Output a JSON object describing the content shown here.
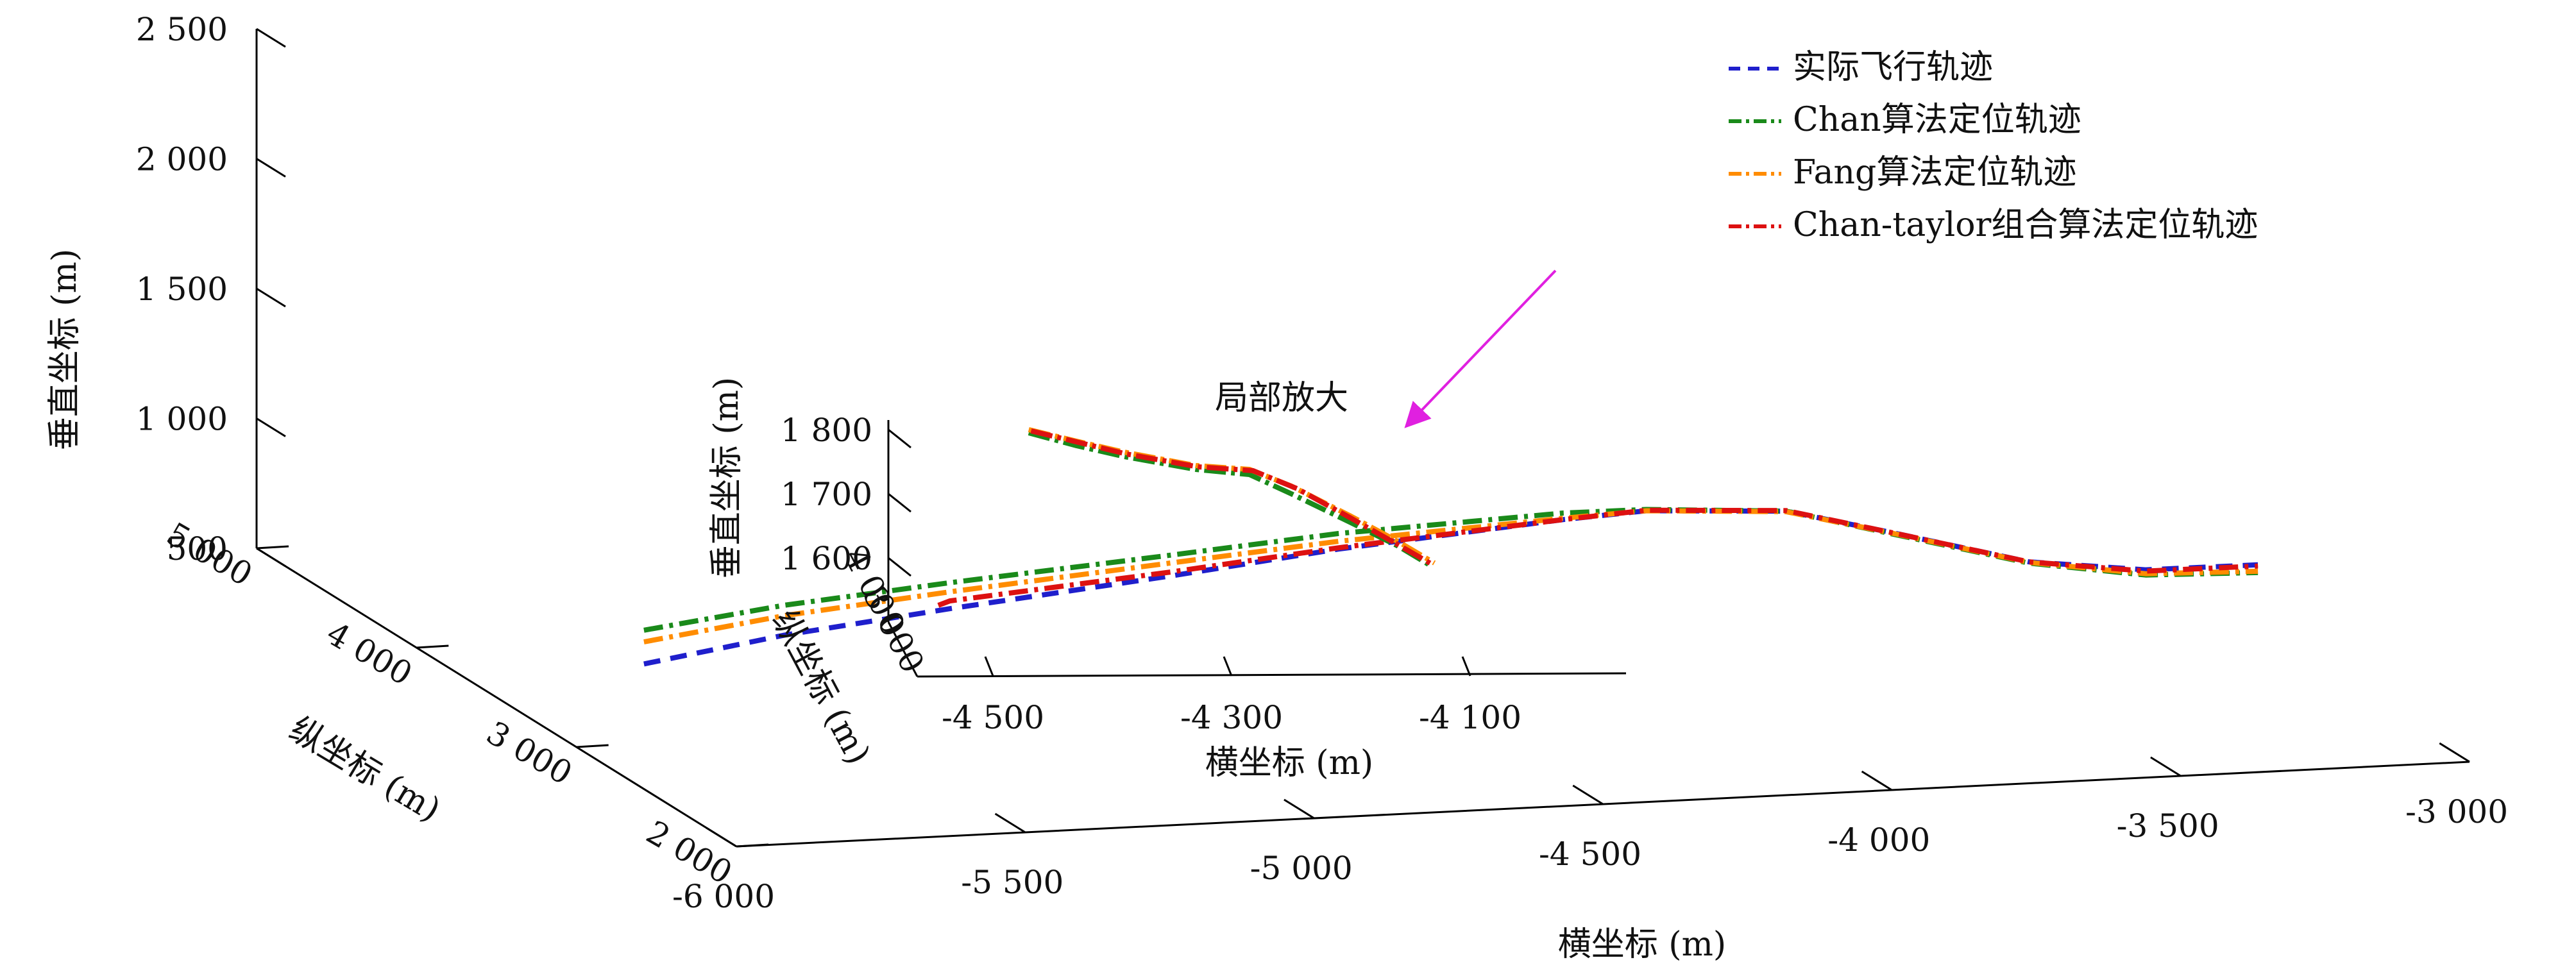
{
  "chart_data": {
    "type": "line",
    "projection": "3d",
    "main": {
      "x_axis": {
        "label": "横坐标 (m)",
        "ticks": [
          -6000,
          -5500,
          -5000,
          -4500,
          -4000,
          -3500,
          -3000
        ],
        "tick_labels": [
          "-6 000",
          "-5 500",
          "-5 000",
          "-4 500",
          "-4 000",
          "-3 500",
          "-3 000"
        ],
        "range": [
          -6000,
          -3000
        ]
      },
      "y_axis": {
        "label": "纵坐标 (m)",
        "ticks": [
          2000,
          3000,
          4000,
          5000
        ],
        "tick_labels": [
          "2 000",
          "3 000",
          "4 000",
          "5 000"
        ],
        "range": [
          2000,
          5000
        ]
      },
      "z_axis": {
        "label": "垂直坐标 (m)",
        "ticks": [
          500,
          1000,
          1500,
          2000,
          2500
        ],
        "tick_labels": [
          "500",
          "1 000",
          "1 500",
          "2 000",
          "2 500"
        ],
        "range": [
          500,
          2500
        ]
      },
      "series": [
        {
          "name": "实际飞行轨迹",
          "color": "#1f1fcc",
          "dash": "dashed",
          "points": [
            [
              -6160,
              2000,
              1220
            ],
            [
              -5900,
              2060,
              1280
            ],
            [
              -5600,
              2110,
              1330
            ],
            [
              -5200,
              2170,
              1390
            ],
            [
              -4900,
              2210,
              1445
            ],
            [
              -4500,
              2250,
              1500
            ],
            [
              -4350,
              2270,
              1510
            ],
            [
              -4100,
              2300,
              1470
            ],
            [
              -3900,
              2330,
              1350
            ],
            [
              -3660,
              2370,
              1200
            ],
            [
              -3450,
              2400,
              1135
            ],
            [
              -3250,
              2420,
              1125
            ]
          ]
        },
        {
          "name": "Chan算法定位轨迹",
          "color": "#1a8a1a",
          "dash": "dash-dot",
          "points": [
            [
              -6160,
              2000,
              1350
            ],
            [
              -5900,
              2060,
              1395
            ],
            [
              -5600,
              2110,
              1430
            ],
            [
              -5200,
              2170,
              1470
            ],
            [
              -4900,
              2210,
              1505
            ],
            [
              -4500,
              2250,
              1525
            ],
            [
              -4350,
              2270,
              1515
            ],
            [
              -4100,
              2300,
              1470
            ],
            [
              -3900,
              2330,
              1345
            ],
            [
              -3660,
              2370,
              1195
            ],
            [
              -3450,
              2400,
              1115
            ],
            [
              -3250,
              2420,
              1095
            ]
          ]
        },
        {
          "name": "Fang算法定位轨迹",
          "color": "#ff8c00",
          "dash": "dash-dot",
          "points": [
            [
              -6160,
              2000,
              1305
            ],
            [
              -5900,
              2060,
              1355
            ],
            [
              -5600,
              2110,
              1395
            ],
            [
              -5200,
              2170,
              1440
            ],
            [
              -4900,
              2210,
              1475
            ],
            [
              -4500,
              2250,
              1505
            ],
            [
              -4350,
              2270,
              1510
            ],
            [
              -4100,
              2300,
              1468
            ],
            [
              -3900,
              2330,
              1348
            ],
            [
              -3660,
              2370,
              1198
            ],
            [
              -3450,
              2400,
              1120
            ],
            [
              -3250,
              2420,
              1100
            ]
          ]
        },
        {
          "name": "Chan-taylor组合算法定位轨迹",
          "color": "#dd1111",
          "dash": "dash-dot",
          "points": [
            [
              -5620,
              2110,
              1345
            ],
            [
              -5600,
              2110,
              1360
            ],
            [
              -5200,
              2170,
              1405
            ],
            [
              -4900,
              2210,
              1450
            ],
            [
              -4500,
              2250,
              1500
            ],
            [
              -4350,
              2270,
              1512
            ],
            [
              -4100,
              2300,
              1472
            ],
            [
              -3900,
              2330,
              1350
            ],
            [
              -3660,
              2370,
              1200
            ],
            [
              -3450,
              2400,
              1130
            ],
            [
              -3250,
              2420,
              1120
            ]
          ]
        }
      ]
    },
    "inset": {
      "title": "局部放大",
      "x_axis": {
        "label": "横坐标 (m)",
        "ticks": [
          -4500,
          -4300,
          -4100
        ],
        "tick_labels": [
          "-4 500",
          "-4 300",
          "-4 100"
        ]
      },
      "y_axis": {
        "label": "纵坐标 (m)",
        "ticks": [
          3000,
          4000
        ],
        "tick_labels": [
          "3 000",
          "4 000"
        ]
      },
      "z_axis": {
        "label": "垂直坐标 (m)",
        "ticks": [
          1600,
          1700,
          1800
        ],
        "tick_labels": [
          "1 600",
          "1 700",
          "1 800"
        ]
      },
      "series": [
        {
          "name": "Chan算法定位轨迹",
          "color": "#1a8a1a",
          "points": [
            [
              -4470,
              1795
            ],
            [
              -4430,
              1775
            ],
            [
              -4390,
              1758
            ],
            [
              -4330,
              1738
            ],
            [
              -4285,
              1730
            ],
            [
              -4250,
              1700
            ],
            [
              -4200,
              1655
            ],
            [
              -4160,
              1618
            ],
            [
              -4135,
              1590
            ]
          ]
        },
        {
          "name": "Fang算法定位轨迹",
          "color": "#ff8c00",
          "points": [
            [
              -4470,
              1800
            ],
            [
              -4430,
              1782
            ],
            [
              -4390,
              1765
            ],
            [
              -4330,
              1744
            ],
            [
              -4285,
              1738
            ],
            [
              -4250,
              1712
            ],
            [
              -4200,
              1665
            ],
            [
              -4160,
              1625
            ],
            [
              -4130,
              1592
            ]
          ]
        },
        {
          "name": "Chan-taylor组合算法定位轨迹",
          "color": "#dd1111",
          "points": [
            [
              -4468,
              1798
            ],
            [
              -4428,
              1780
            ],
            [
              -4388,
              1762
            ],
            [
              -4328,
              1742
            ],
            [
              -4282,
              1736
            ],
            [
              -4245,
              1708
            ],
            [
              -4200,
              1662
            ],
            [
              -4160,
              1620
            ],
            [
              -4132,
              1590
            ]
          ]
        }
      ]
    },
    "legend": {
      "placement": "top-right",
      "entries": [
        {
          "label": "实际飞行轨迹",
          "color": "#1f1fcc",
          "dash": "dashed"
        },
        {
          "label": "Chan算法定位轨迹",
          "color": "#1a8a1a",
          "dash": "dash-dot"
        },
        {
          "label": "Fang算法定位轨迹",
          "color": "#ff8c00",
          "dash": "dash-dot"
        },
        {
          "label": "Chan-taylor组合算法定位轨迹",
          "color": "#dd1111",
          "dash": "dash-dot"
        }
      ]
    },
    "annotation": {
      "text": "局部放大",
      "arrow_color": "#e020e0"
    },
    "grid": false
  }
}
